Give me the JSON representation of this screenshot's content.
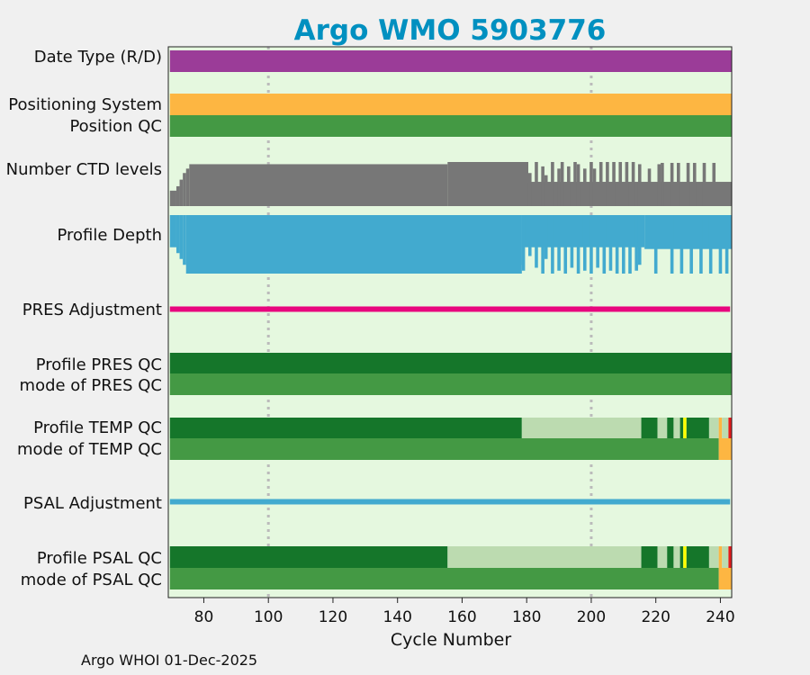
{
  "chart_data": {
    "type": "heatmap",
    "title": "Argo WMO 5903776",
    "xlabel": "Cycle Number",
    "xlim": [
      69,
      243.5
    ],
    "xticks": [
      80,
      100,
      120,
      140,
      160,
      180,
      200,
      220,
      240
    ],
    "vertical_dotted_lines": [
      100,
      200
    ],
    "row_labels": [
      "Date Type (R/D)",
      "Positioning System",
      "Position QC",
      "Number CTD levels",
      "Profile Depth",
      "PRES Adjustment",
      "Profile PRES QC",
      "mode of PRES QC",
      "Profile TEMP QC",
      "mode of TEMP QC",
      "PSAL Adjustment",
      "Profile PSAL QC",
      "mode of PSAL QC"
    ],
    "colors": {
      "plot_background": "#e5f8df",
      "figure_background": "#f0f0f0",
      "title": "#0090c0",
      "date_type": "#9b3c98",
      "positioning_system": "#fdb642",
      "qc_good": "#449944",
      "profile_qc_A": "#15762a",
      "profile_qc_partial": "#bcdbb0",
      "ctd_levels": "#777777",
      "profile_depth": "#42aacf",
      "pres_adjustment": "#e8077e",
      "psal_adjustment": "#42aacf",
      "yellow_flag": "#ffff00",
      "orange_flag": "#fdb642",
      "red_flag": "#e41a1c"
    },
    "segments": {
      "date_type": [
        {
          "from": 69.5,
          "to": 243.5,
          "color": "date_type"
        }
      ],
      "positioning_system": [
        {
          "from": 69.5,
          "to": 243.5,
          "color": "positioning_system"
        }
      ],
      "position_qc": [
        {
          "from": 69.5,
          "to": 243.5,
          "color": "qc_good"
        }
      ],
      "profile_pres_qc": [
        {
          "from": 69.5,
          "to": 243.5,
          "color": "profile_qc_A"
        }
      ],
      "mode_pres_qc": [
        {
          "from": 69.5,
          "to": 243.5,
          "color": "qc_good"
        }
      ],
      "profile_temp_qc": [
        {
          "from": 69.5,
          "to": 178.5,
          "color": "profile_qc_A"
        },
        {
          "from": 178.5,
          "to": 215.5,
          "color": "profile_qc_partial"
        },
        {
          "from": 215.5,
          "to": 220.5,
          "color": "profile_qc_A"
        },
        {
          "from": 220.5,
          "to": 223.5,
          "color": "profile_qc_partial"
        },
        {
          "from": 223.5,
          "to": 225.5,
          "color": "profile_qc_A"
        },
        {
          "from": 225.5,
          "to": 227.5,
          "color": "profile_qc_partial"
        },
        {
          "from": 227.5,
          "to": 228.5,
          "color": "profile_qc_A"
        },
        {
          "from": 228.5,
          "to": 229.5,
          "color": "yellow_flag"
        },
        {
          "from": 229.5,
          "to": 236.5,
          "color": "profile_qc_A"
        },
        {
          "from": 236.5,
          "to": 239.5,
          "color": "profile_qc_partial"
        },
        {
          "from": 239.5,
          "to": 240.5,
          "color": "orange_flag"
        },
        {
          "from": 240.5,
          "to": 242.5,
          "color": "profile_qc_partial"
        },
        {
          "from": 242.5,
          "to": 243.5,
          "color": "red_flag"
        }
      ],
      "mode_temp_qc": [
        {
          "from": 69.5,
          "to": 239.5,
          "color": "qc_good"
        },
        {
          "from": 239.5,
          "to": 243.5,
          "color": "orange_flag"
        }
      ],
      "profile_psal_qc": [
        {
          "from": 69.5,
          "to": 155.5,
          "color": "profile_qc_A"
        },
        {
          "from": 155.5,
          "to": 215.5,
          "color": "profile_qc_partial"
        },
        {
          "from": 215.5,
          "to": 220.5,
          "color": "profile_qc_A"
        },
        {
          "from": 220.5,
          "to": 223.5,
          "color": "profile_qc_partial"
        },
        {
          "from": 223.5,
          "to": 225.5,
          "color": "profile_qc_A"
        },
        {
          "from": 225.5,
          "to": 227.5,
          "color": "profile_qc_partial"
        },
        {
          "from": 227.5,
          "to": 228.5,
          "color": "profile_qc_A"
        },
        {
          "from": 228.5,
          "to": 229.5,
          "color": "yellow_flag"
        },
        {
          "from": 229.5,
          "to": 236.5,
          "color": "profile_qc_A"
        },
        {
          "from": 236.5,
          "to": 239.5,
          "color": "profile_qc_partial"
        },
        {
          "from": 239.5,
          "to": 240.5,
          "color": "orange_flag"
        },
        {
          "from": 240.5,
          "to": 242.5,
          "color": "profile_qc_partial"
        },
        {
          "from": 242.5,
          "to": 243.5,
          "color": "red_flag"
        }
      ],
      "mode_psal_qc": [
        {
          "from": 69.5,
          "to": 239.5,
          "color": "qc_good"
        },
        {
          "from": 239.5,
          "to": 243.5,
          "color": "orange_flag"
        }
      ]
    },
    "adjustments": {
      "pres": {
        "from": 69.5,
        "to": 243,
        "color": "pres_adjustment"
      },
      "psal": {
        "from": 69.5,
        "to": 243,
        "color": "psal_adjustment"
      }
    },
    "ctd_levels_typical": [
      {
        "from": 69.5,
        "to": 71.5,
        "level": 0.35
      },
      {
        "from": 71.5,
        "to": 72.5,
        "level": 0.45
      },
      {
        "from": 72.5,
        "to": 73.5,
        "level": 0.6
      },
      {
        "from": 73.5,
        "to": 74.5,
        "level": 0.75
      },
      {
        "from": 74.5,
        "to": 75.5,
        "level": 0.85
      },
      {
        "from": 75.5,
        "to": 155.5,
        "level": 0.95
      },
      {
        "from": 155.5,
        "to": 180.5,
        "level": 1.0
      },
      {
        "from": 180.5,
        "to": 243.5,
        "level": 0.55
      }
    ],
    "ctd_spikes": [
      {
        "cycle": 181,
        "level": 0.75
      },
      {
        "cycle": 183,
        "level": 1.0
      },
      {
        "cycle": 185,
        "level": 0.9
      },
      {
        "cycle": 186,
        "level": 0.7
      },
      {
        "cycle": 188,
        "level": 1.0
      },
      {
        "cycle": 190,
        "level": 0.85
      },
      {
        "cycle": 191,
        "level": 1.0
      },
      {
        "cycle": 193,
        "level": 0.9
      },
      {
        "cycle": 195,
        "level": 1.0
      },
      {
        "cycle": 196,
        "level": 0.95
      },
      {
        "cycle": 198,
        "level": 0.85
      },
      {
        "cycle": 200,
        "level": 1.0
      },
      {
        "cycle": 201,
        "level": 0.85
      },
      {
        "cycle": 203,
        "level": 1.0
      },
      {
        "cycle": 205,
        "level": 1.0
      },
      {
        "cycle": 207,
        "level": 1.0
      },
      {
        "cycle": 209,
        "level": 1.0
      },
      {
        "cycle": 211,
        "level": 1.0
      },
      {
        "cycle": 213,
        "level": 1.0
      },
      {
        "cycle": 215,
        "level": 0.95
      },
      {
        "cycle": 218,
        "level": 0.85
      },
      {
        "cycle": 221,
        "level": 0.95
      },
      {
        "cycle": 222,
        "level": 0.98
      },
      {
        "cycle": 225,
        "level": 0.98
      },
      {
        "cycle": 227,
        "level": 0.98
      },
      {
        "cycle": 230,
        "level": 0.98
      },
      {
        "cycle": 232,
        "level": 0.98
      },
      {
        "cycle": 235,
        "level": 0.98
      },
      {
        "cycle": 238,
        "level": 0.98
      }
    ],
    "profile_depth_typical": [
      {
        "from": 69.5,
        "to": 71.5,
        "level": 0.55
      },
      {
        "from": 71.5,
        "to": 72.5,
        "level": 0.65
      },
      {
        "from": 72.5,
        "to": 73.5,
        "level": 0.75
      },
      {
        "from": 73.5,
        "to": 74.5,
        "level": 0.85
      },
      {
        "from": 74.5,
        "to": 178.5,
        "level": 1.0
      },
      {
        "from": 178.5,
        "to": 216.5,
        "level": 0.55
      },
      {
        "from": 216.5,
        "to": 243.5,
        "level": 0.58
      }
    ],
    "depth_spikes": [
      {
        "cycle": 178,
        "level": 0.85
      },
      {
        "cycle": 179,
        "level": 0.95
      },
      {
        "cycle": 181,
        "level": 0.7
      },
      {
        "cycle": 183,
        "level": 0.9
      },
      {
        "cycle": 185,
        "level": 1.0
      },
      {
        "cycle": 186,
        "level": 0.75
      },
      {
        "cycle": 188,
        "level": 1.0
      },
      {
        "cycle": 190,
        "level": 0.95
      },
      {
        "cycle": 192,
        "level": 1.0
      },
      {
        "cycle": 194,
        "level": 0.9
      },
      {
        "cycle": 196,
        "level": 1.0
      },
      {
        "cycle": 198,
        "level": 0.95
      },
      {
        "cycle": 200,
        "level": 1.0
      },
      {
        "cycle": 202,
        "level": 0.9
      },
      {
        "cycle": 204,
        "level": 1.0
      },
      {
        "cycle": 206,
        "level": 0.95
      },
      {
        "cycle": 208,
        "level": 1.0
      },
      {
        "cycle": 210,
        "level": 1.0
      },
      {
        "cycle": 212,
        "level": 1.0
      },
      {
        "cycle": 214,
        "level": 0.95
      },
      {
        "cycle": 215,
        "level": 0.85
      },
      {
        "cycle": 220,
        "level": 1.0
      },
      {
        "cycle": 225,
        "level": 1.0
      },
      {
        "cycle": 228,
        "level": 1.0
      },
      {
        "cycle": 231,
        "level": 1.0
      },
      {
        "cycle": 234,
        "level": 1.0
      },
      {
        "cycle": 237,
        "level": 1.0
      },
      {
        "cycle": 240,
        "level": 1.0
      },
      {
        "cycle": 242,
        "level": 1.0
      }
    ]
  },
  "footer": "Argo WHOI 01-Dec-2025"
}
